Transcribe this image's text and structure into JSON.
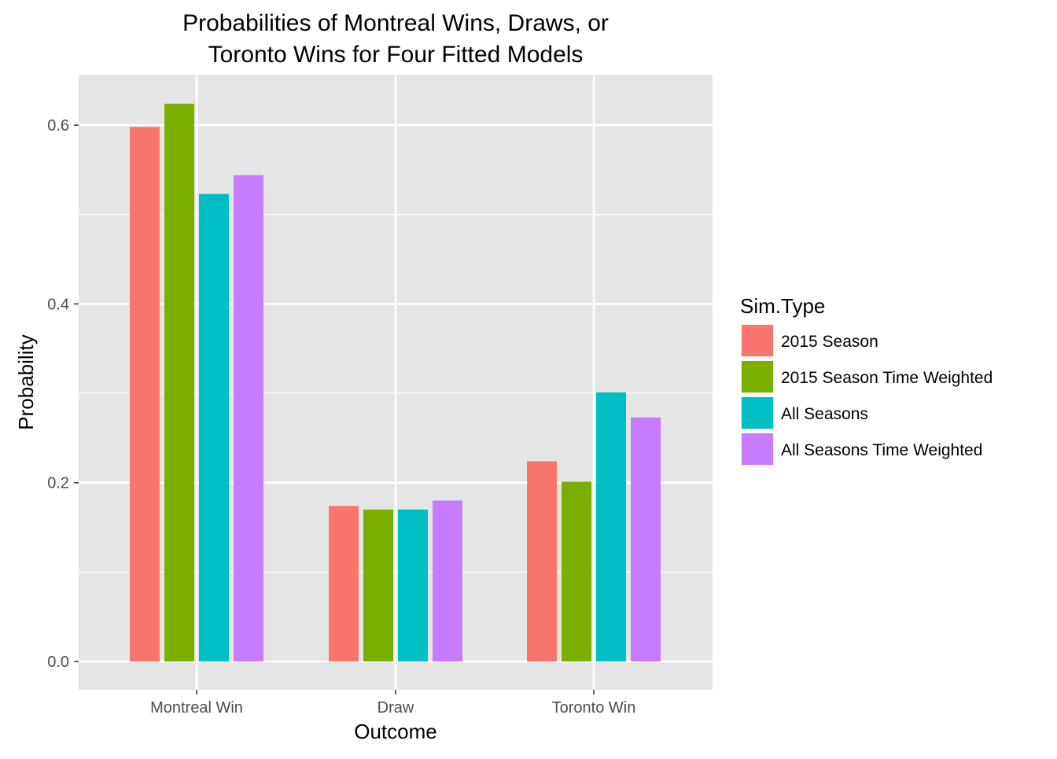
{
  "chart_data": {
    "type": "bar",
    "title_lines": [
      "Probabilities of Montreal Wins, Draws, or",
      "Toronto Wins for Four Fitted Models"
    ],
    "xlabel": "Outcome",
    "ylabel": "Probability",
    "categories": [
      "Montreal Win",
      "Draw",
      "Toronto Win"
    ],
    "ylim": [
      -0.03,
      0.66
    ],
    "yticks": [
      0.0,
      0.2,
      0.4,
      0.6
    ],
    "ytick_labels": [
      "0.0",
      "0.2",
      "0.4",
      "0.6"
    ],
    "grid": true,
    "legend": {
      "title": "Sim.Type",
      "position": "right"
    },
    "series": [
      {
        "name": "2015 Season",
        "color": "#F8766D",
        "values": [
          0.598,
          0.174,
          0.224
        ]
      },
      {
        "name": "2015 Season Time Weighted",
        "color": "#7CAE00",
        "values": [
          0.624,
          0.17,
          0.201
        ]
      },
      {
        "name": "All Seasons",
        "color": "#00BFC4",
        "values": [
          0.523,
          0.17,
          0.301
        ]
      },
      {
        "name": "All Seasons Time Weighted",
        "color": "#C77CFF",
        "values": [
          0.544,
          0.18,
          0.273
        ]
      }
    ]
  },
  "colors": {
    "panel_background": "#e5e5e5",
    "grid_line": "#ffffff",
    "tick_text": "#4d4d4d"
  }
}
